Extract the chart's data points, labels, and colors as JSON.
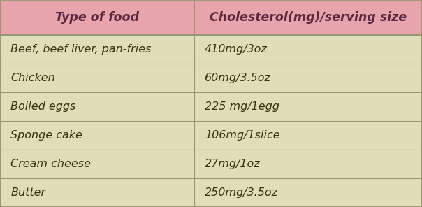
{
  "headers": [
    "Type of food",
    "Cholesterol(mg)/serving size"
  ],
  "rows": [
    [
      "Beef, beef liver, pan-fries",
      "410mg/3oz"
    ],
    [
      "Chicken",
      "60mg/3.5oz"
    ],
    [
      "Boiled eggs",
      "225 mg/1egg"
    ],
    [
      "Sponge cake",
      "106mg/1slice"
    ],
    [
      "Cream cheese",
      "27mg/1oz"
    ],
    [
      "Butter",
      "250mg/3.5oz"
    ]
  ],
  "header_bg_color": "#E8A4AC",
  "row_bg_color": "#E0DEB8",
  "border_color": "#9A9870",
  "header_text_color": "#5A2840",
  "row_text_color": "#3A3010",
  "header_fontsize": 12.5,
  "row_fontsize": 11.5,
  "col_split": 0.46,
  "fig_width": 6.04,
  "fig_height": 2.96,
  "dpi": 100
}
